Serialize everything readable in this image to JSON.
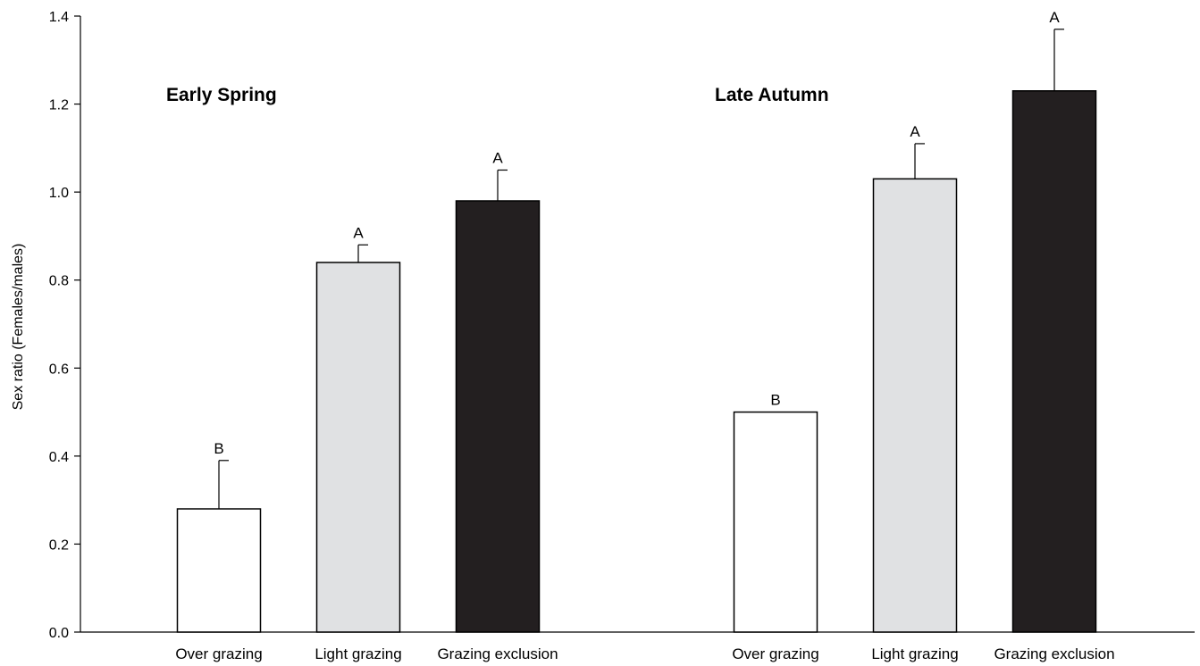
{
  "chart_data": {
    "type": "bar",
    "title": "",
    "xlabel": "",
    "ylabel": "Sex ratio (Females/males)",
    "ylim": [
      0,
      1.4
    ],
    "yticks": [
      "0.0",
      "0.2",
      "0.4",
      "0.6",
      "0.8",
      "1.0",
      "1.2",
      "1.4"
    ],
    "grid": false,
    "legend": "none",
    "groups": [
      {
        "name": "Early Spring",
        "bars": [
          {
            "category": "Over grazing",
            "value": 0.28,
            "error": 0.11,
            "sig": "B",
            "color": "#ffffff"
          },
          {
            "category": "Light grazing",
            "value": 0.84,
            "error": 0.04,
            "sig": "A",
            "color": "#e0e1e3"
          },
          {
            "category": "Grazing exclusion",
            "value": 0.98,
            "error": 0.07,
            "sig": "A",
            "color": "#231f20"
          }
        ]
      },
      {
        "name": "Late Autumn",
        "bars": [
          {
            "category": "Over grazing",
            "value": 0.5,
            "error": 0.0,
            "sig": "B",
            "color": "#ffffff"
          },
          {
            "category": "Light grazing",
            "value": 1.03,
            "error": 0.08,
            "sig": "A",
            "color": "#e0e1e3"
          },
          {
            "category": "Grazing exclusion",
            "value": 1.23,
            "error": 0.14,
            "sig": "A",
            "color": "#231f20"
          }
        ]
      }
    ]
  }
}
